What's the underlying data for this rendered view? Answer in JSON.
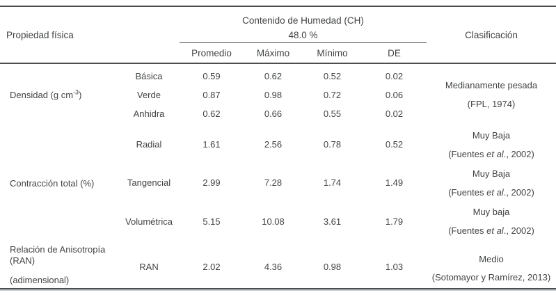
{
  "header": {
    "property_label": "Propiedad física",
    "ch_title": "Contenido de Humedad (CH)",
    "ch_subtitle": "48.0 %",
    "stat_columns": [
      "Promedio",
      "Máximo",
      "Mínimo",
      "DE"
    ],
    "classification_label": "Clasificación"
  },
  "groups": [
    {
      "property": {
        "prefix": "Densidad (g cm",
        "sup": "-3",
        "suffix": ")"
      },
      "rows": [
        {
          "condition": "Básica",
          "promedio": "0.59",
          "maximo": "0.62",
          "minimo": "0.52",
          "de": "0.02"
        },
        {
          "condition": "Verde",
          "promedio": "0.87",
          "maximo": "0.98",
          "minimo": "0.72",
          "de": "0.06"
        },
        {
          "condition": "Anhidra",
          "promedio": "0.62",
          "maximo": "0.66",
          "minimo": "0.55",
          "de": "0.02"
        }
      ],
      "classification": {
        "line1": "Medianamente pesada",
        "line2": "(FPL, 1974)"
      }
    },
    {
      "property": "Contracción total (%)",
      "rows": [
        {
          "condition": "Radial",
          "promedio": "1.61",
          "maximo": "2.56",
          "minimo": "0.78",
          "de": "0.52",
          "classification": {
            "line1": "Muy Baja",
            "line2_prefix": "(Fuentes ",
            "line2_italic": "et al",
            "line2_suffix": "., 2002)"
          }
        },
        {
          "condition": "Tangencial",
          "promedio": "2.99",
          "maximo": "7.28",
          "minimo": "1.74",
          "de": "1.49",
          "classification": {
            "line1": "Muy Baja",
            "line2_prefix": "(Fuentes ",
            "line2_italic": "et al",
            "line2_suffix": "., 2002)"
          }
        },
        {
          "condition": "Volumétrica",
          "promedio": "5.15",
          "maximo": "10.08",
          "minimo": "3.61",
          "de": "1.79",
          "classification": {
            "line1": "Muy baja",
            "line2_prefix": "(Fuentes ",
            "line2_italic": "et al",
            "line2_suffix": "., 2002)"
          }
        }
      ]
    },
    {
      "property": {
        "line1": "Relación de Anisotropía",
        "line2": "(RAN)",
        "line3": "(adimensional)"
      },
      "rows": [
        {
          "condition": "RAN",
          "promedio": "2.02",
          "maximo": "4.36",
          "minimo": "0.98",
          "de": "1.03",
          "classification": {
            "line1": "Medio",
            "line2": "(Sotomayor y Ramírez, 2013)"
          }
        }
      ]
    }
  ]
}
